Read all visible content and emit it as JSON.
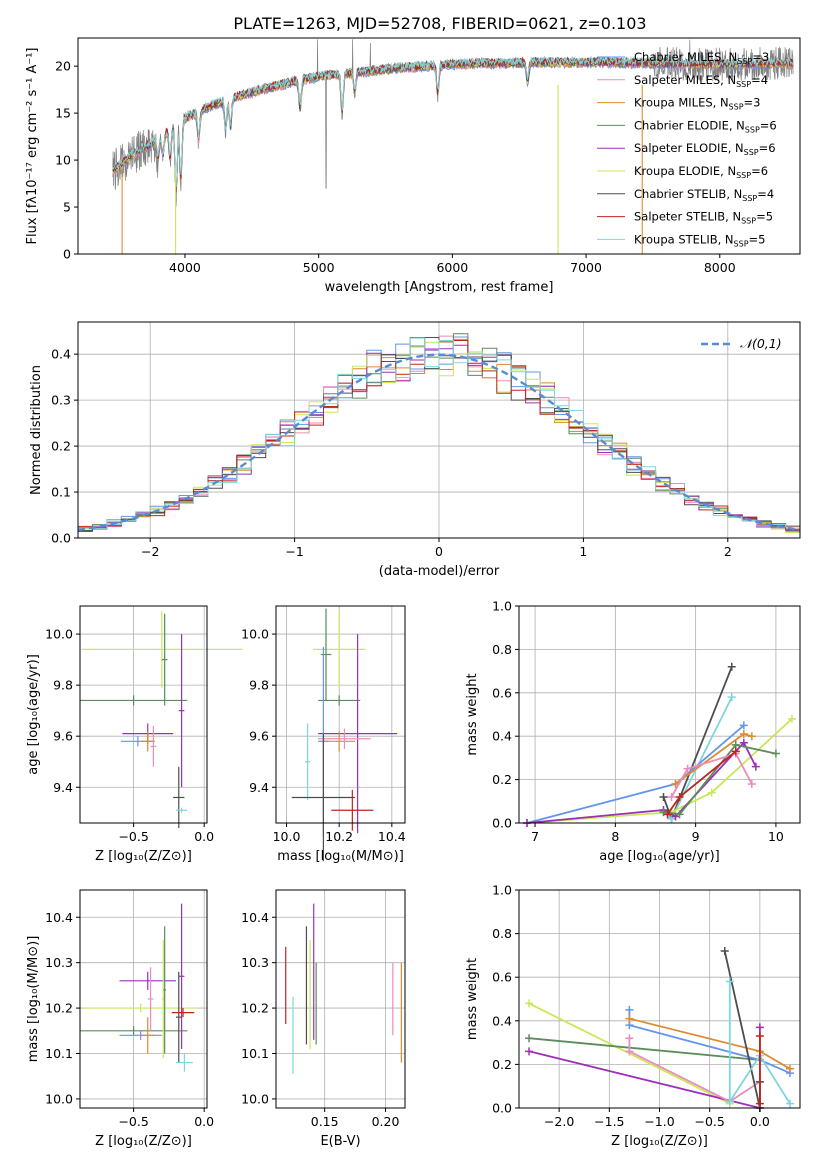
{
  "title": "PLATE=1263, MJD=52708, FIBERID=0621, z=0.103",
  "chart_data": [
    {
      "id": "spectrum",
      "type": "line",
      "xlabel": "wavelength [Angstrom, rest frame]",
      "ylabel": "Flux [fλ10⁻¹⁷ erg cm⁻² s⁻¹ A⁻¹]",
      "xlim": [
        3200,
        8600
      ],
      "ylim": [
        0,
        23
      ],
      "xticks": [
        4000,
        5000,
        6000,
        7000,
        8000
      ],
      "yticks": [
        0,
        5,
        10,
        15,
        20
      ],
      "grid": false,
      "legend_loc": "upper-right",
      "observed": {
        "color": "#7f7f7f",
        "x": [
          3460,
          3600,
          3800,
          4000,
          4200,
          4400,
          4600,
          4800,
          5000,
          5200,
          5400,
          5600,
          5800,
          6000,
          6200,
          6400,
          6600,
          6800,
          7000,
          7200,
          7400,
          7600,
          7800,
          8000,
          8200,
          8400,
          8550
        ],
        "y": [
          8.8,
          10.5,
          12.2,
          14.5,
          15.8,
          16.8,
          17.6,
          18.3,
          18.9,
          19.2,
          19.5,
          19.8,
          20.0,
          20.2,
          20.3,
          20.3,
          20.4,
          20.4,
          20.4,
          20.4,
          20.3,
          20.3,
          20.2,
          20.2,
          20.2,
          20.3,
          20.3
        ]
      },
      "series": [
        {
          "name": "Chabrier MILES, N_SSP=3",
          "color": "#6495ed"
        },
        {
          "name": "Salpeter MILES, N_SSP=4",
          "color": "#ea8cbe"
        },
        {
          "name": "Kroupa MILES, N_SSP=3",
          "color": "#dd8b2c"
        },
        {
          "name": "Chabrier ELODIE, N_SSP=6",
          "color": "#5c8b5c"
        },
        {
          "name": "Salpeter ELODIE, N_SSP=6",
          "color": "#9b30b5"
        },
        {
          "name": "Kroupa ELODIE, N_SSP=6",
          "color": "#c8e85a"
        },
        {
          "name": "Chabrier STELIB, N_SSP=4",
          "color": "#4d4d4d"
        },
        {
          "name": "Salpeter STELIB, N_SSP=5",
          "color": "#c0251d"
        },
        {
          "name": "Kroupa STELIB, N_SSP=5",
          "color": "#7fd6dc"
        }
      ],
      "legend_prefix": [
        "Chabrier MILES, N",
        "Salpeter MILES, N",
        "Kroupa MILES, N",
        "Chabrier ELODIE, N",
        "Salpeter ELODIE, N",
        "Kroupa ELODIE, N",
        "Chabrier STELIB, N",
        "Salpeter STELIB, N",
        "Kroupa STELIB, N"
      ],
      "legend_sub": "SSP",
      "legend_num": [
        "=3",
        "=4",
        "=3",
        "=6",
        "=6",
        "=6",
        "=4",
        "=5",
        "=5"
      ],
      "model_cutoffs": {
        "x": [
          3530,
          3930,
          6790,
          7420
        ],
        "colors": [
          "#dd8b2c",
          "#c8e85a",
          "#c8e85a",
          "#dd8b2c"
        ]
      }
    },
    {
      "id": "residual-hist",
      "type": "bar",
      "xlabel": "(data-model)/error",
      "ylabel": "Normed distribution",
      "xlim": [
        -2.5,
        2.5
      ],
      "ylim": [
        0,
        0.47
      ],
      "xticks": [
        -2,
        -1,
        0,
        1,
        2
      ],
      "yticks": [
        0.0,
        0.1,
        0.2,
        0.3,
        0.4
      ],
      "grid": true,
      "legend_loc": "upper-right",
      "reference_curve": {
        "name": "𝒩(0,1)",
        "mean": 0,
        "sigma": 1,
        "color": "#5a8ad6"
      },
      "bin_width": 0.1
    },
    {
      "id": "age-vs-Z",
      "type": "scatter",
      "xlabel": "Z [log₁₀(Z/Z⊙)]",
      "ylabel": "age  [log₁₀(age/yr)]",
      "xlim": [
        -0.88,
        0.02
      ],
      "ylim": [
        9.26,
        10.11
      ],
      "xticks": [
        -0.5,
        0.0
      ],
      "yticks": [
        9.4,
        9.6,
        9.8,
        10.0
      ],
      "grid": true,
      "points": [
        {
          "x": -0.3,
          "y": 9.94,
          "xerr": 0.57,
          "yerr": 0.15,
          "color": "#c8e85a"
        },
        {
          "x": -0.28,
          "y": 9.9,
          "xerr": 0.02,
          "yerr": 0.18,
          "color": "#5c8b5c"
        },
        {
          "x": -0.5,
          "y": 9.74,
          "xerr": 0.38,
          "yerr": 0.02,
          "color": "#5c8b5c"
        },
        {
          "x": -0.4,
          "y": 9.61,
          "xerr": 0.18,
          "yerr": 0.04,
          "color": "#9b30b5"
        },
        {
          "x": -0.16,
          "y": 9.7,
          "xerr": 0.02,
          "yerr": 0.3,
          "color": "#9b30b5"
        },
        {
          "x": -0.47,
          "y": 9.58,
          "xerr": 0.12,
          "yerr": 0.02,
          "color": "#6495ed"
        },
        {
          "x": -0.4,
          "y": 9.58,
          "xerr": 0.05,
          "yerr": 0.04,
          "color": "#dd8b2c"
        },
        {
          "x": -0.36,
          "y": 9.56,
          "xerr": 0.02,
          "yerr": 0.08,
          "color": "#ea8cbe"
        },
        {
          "x": -0.18,
          "y": 9.36,
          "xerr": 0.04,
          "yerr": 0.12,
          "color": "#4d4d4d"
        },
        {
          "x": -0.16,
          "y": 9.31,
          "xerr": 0.04,
          "yerr": 0.01,
          "color": "#7fd6dc"
        }
      ]
    },
    {
      "id": "age-vs-mass",
      "type": "scatter",
      "xlabel": "mass [log₁₀(M/M⊙)]",
      "ylabel": "",
      "xlim": [
        9.96,
        10.45
      ],
      "ylim": [
        9.26,
        10.11
      ],
      "xticks": [
        10.0,
        10.2,
        10.4
      ],
      "yticks": [
        9.4,
        9.6,
        9.8,
        10.0
      ],
      "grid": true,
      "points": [
        {
          "x": 10.2,
          "y": 9.94,
          "xerr": 0.1,
          "yerr": 0.15,
          "color": "#c8e85a"
        },
        {
          "x": 10.15,
          "y": 9.92,
          "xerr": 0.02,
          "yerr": 0.18,
          "color": "#5c8b5c"
        },
        {
          "x": 10.2,
          "y": 9.74,
          "xerr": 0.08,
          "yerr": 0.02,
          "color": "#5c8b5c"
        },
        {
          "x": 10.27,
          "y": 9.61,
          "xerr": 0.15,
          "yerr": 0.39,
          "color": "#9b30b5"
        },
        {
          "x": 10.14,
          "y": 9.58,
          "xerr": 0.02,
          "yerr": 0.37,
          "color": "#6495ed"
        },
        {
          "x": 10.2,
          "y": 9.58,
          "xerr": 0.06,
          "yerr": 0.04,
          "color": "#dd8b2c"
        },
        {
          "x": 10.22,
          "y": 9.59,
          "xerr": 0.1,
          "yerr": 0.04,
          "color": "#ea8cbe"
        },
        {
          "x": 10.08,
          "y": 9.5,
          "xerr": 0.01,
          "yerr": 0.15,
          "color": "#7fd6dc"
        },
        {
          "x": 10.14,
          "y": 9.36,
          "xerr": 0.12,
          "yerr": 0.25,
          "color": "#4d4d4d"
        },
        {
          "x": 10.25,
          "y": 9.31,
          "xerr": 0.08,
          "yerr": 0.08,
          "color": "#c0251d"
        }
      ]
    },
    {
      "id": "mass-weight-vs-age",
      "type": "line",
      "xlabel": "age  [log₁₀(age/yr)]",
      "ylabel": "mass weight",
      "xlim": [
        6.8,
        10.3
      ],
      "ylim": [
        0,
        1
      ],
      "xticks": [
        7,
        8,
        9,
        10
      ],
      "yticks": [
        0.0,
        0.2,
        0.4,
        0.6,
        0.8,
        1.0
      ],
      "grid": true,
      "series": [
        {
          "color": "#4d4d4d",
          "x": [
            8.6,
            8.7,
            9.45
          ],
          "y": [
            0.12,
            0.02,
            0.72
          ]
        },
        {
          "color": "#7fd6dc",
          "x": [
            8.6,
            8.7,
            9.45
          ],
          "y": [
            0.05,
            0.02,
            0.58
          ]
        },
        {
          "color": "#6495ed",
          "x": [
            6.9,
            8.75,
            9.6
          ],
          "y": [
            0.0,
            0.18,
            0.45
          ]
        },
        {
          "color": "#dd8b2c",
          "x": [
            8.75,
            9.6,
            9.7
          ],
          "y": [
            0.18,
            0.41,
            0.4
          ]
        },
        {
          "color": "#c8e85a",
          "x": [
            6.9,
            8.7,
            9.2,
            10.2
          ],
          "y": [
            0.0,
            0.05,
            0.14,
            0.48
          ]
        },
        {
          "color": "#9b30b5",
          "x": [
            6.9,
            8.6,
            8.75,
            9.6,
            9.75
          ],
          "y": [
            0.0,
            0.06,
            0.03,
            0.37,
            0.26
          ]
        },
        {
          "color": "#5c8b5c",
          "x": [
            8.6,
            8.8,
            9.5,
            10.0
          ],
          "y": [
            0.05,
            0.04,
            0.36,
            0.32
          ]
        },
        {
          "color": "#ea8cbe",
          "x": [
            8.7,
            8.9,
            9.5,
            9.7
          ],
          "y": [
            0.12,
            0.25,
            0.32,
            0.18
          ]
        },
        {
          "color": "#c0251d",
          "x": [
            8.65,
            8.8,
            9.5
          ],
          "y": [
            0.04,
            0.12,
            0.33
          ]
        }
      ]
    },
    {
      "id": "mass-vs-Z",
      "type": "scatter",
      "xlabel": "Z [log₁₀(Z/Z⊙)]",
      "ylabel": "mass [log₁₀(M/M⊙)]",
      "xlim": [
        -0.88,
        0.02
      ],
      "ylim": [
        9.98,
        10.46
      ],
      "xticks": [
        -0.5,
        0.0
      ],
      "yticks": [
        10.0,
        10.1,
        10.2,
        10.3,
        10.4
      ],
      "grid": true,
      "points": [
        {
          "x": -0.5,
          "y": 10.15,
          "xerr": 0.38,
          "yerr": 0.01,
          "color": "#5c8b5c"
        },
        {
          "x": -0.45,
          "y": 10.2,
          "xerr": 0.4,
          "yerr": 0.01,
          "color": "#c8e85a"
        },
        {
          "x": -0.4,
          "y": 10.26,
          "xerr": 0.2,
          "yerr": 0.02,
          "color": "#9b30b5"
        },
        {
          "x": -0.16,
          "y": 10.27,
          "xerr": 0.02,
          "yerr": 0.16,
          "color": "#9b30b5"
        },
        {
          "x": -0.29,
          "y": 10.22,
          "xerr": 0.01,
          "yerr": 0.13,
          "color": "#c8e85a"
        },
        {
          "x": -0.28,
          "y": 10.24,
          "xerr": 0.01,
          "yerr": 0.14,
          "color": "#5c8b5c"
        },
        {
          "x": -0.45,
          "y": 10.14,
          "xerr": 0.15,
          "yerr": 0.01,
          "color": "#6495ed"
        },
        {
          "x": -0.4,
          "y": 10.14,
          "xerr": 0.05,
          "yerr": 0.04,
          "color": "#dd8b2c"
        },
        {
          "x": -0.38,
          "y": 10.22,
          "xerr": 0.02,
          "yerr": 0.07,
          "color": "#ea8cbe"
        },
        {
          "x": -0.18,
          "y": 10.18,
          "xerr": 0.02,
          "yerr": 0.1,
          "color": "#4d4d4d"
        },
        {
          "x": -0.15,
          "y": 10.19,
          "xerr": 0.08,
          "yerr": 0.01,
          "color": "#c0251d"
        },
        {
          "x": -0.14,
          "y": 10.08,
          "xerr": 0.06,
          "yerr": 0.02,
          "color": "#7fd6dc"
        }
      ]
    },
    {
      "id": "mass-vs-EBV",
      "type": "scatter",
      "xlabel": "E(B-V)",
      "ylabel": "",
      "xlim": [
        0.11,
        0.216
      ],
      "ylim": [
        9.98,
        10.46
      ],
      "xticks": [
        0.15,
        0.2
      ],
      "yticks": [
        10.0,
        10.1,
        10.2,
        10.3,
        10.4
      ],
      "grid": true,
      "points": [
        {
          "x": 0.118,
          "y": 10.25,
          "xerr": 0.0,
          "yerr": 0.085,
          "color": "#c0251d"
        },
        {
          "x": 0.124,
          "y": 10.14,
          "xerr": 0.0,
          "yerr": 0.085,
          "color": "#7fd6dc"
        },
        {
          "x": 0.135,
          "y": 10.25,
          "xerr": 0.0,
          "yerr": 0.13,
          "color": "#4d4d4d"
        },
        {
          "x": 0.138,
          "y": 10.23,
          "xerr": 0.0,
          "yerr": 0.12,
          "color": "#c8e85a"
        },
        {
          "x": 0.141,
          "y": 10.28,
          "xerr": 0.0,
          "yerr": 0.15,
          "color": "#9b30b5"
        },
        {
          "x": 0.143,
          "y": 10.21,
          "xerr": 0.0,
          "yerr": 0.09,
          "color": "#5c8b5c"
        },
        {
          "x": 0.206,
          "y": 10.22,
          "xerr": 0.0,
          "yerr": 0.08,
          "color": "#ea8cbe"
        },
        {
          "x": 0.213,
          "y": 10.19,
          "xerr": 0.0,
          "yerr": 0.11,
          "color": "#dd8b2c"
        }
      ]
    },
    {
      "id": "mass-weight-vs-Z",
      "type": "line",
      "xlabel": "Z [log₁₀(Z/Z⊙)]",
      "ylabel": "mass weight",
      "xlim": [
        -2.4,
        0.4
      ],
      "ylim": [
        0,
        1
      ],
      "xticks": [
        -2.0,
        -1.5,
        -1.0,
        -0.5,
        0.0
      ],
      "yticks": [
        0.0,
        0.2,
        0.4,
        0.6,
        0.8,
        1.0
      ],
      "grid": true,
      "series": [
        {
          "color": "#c8e85a",
          "x": [
            -2.3,
            -0.3
          ],
          "y": [
            0.48,
            0.02
          ]
        },
        {
          "color": "#5c8b5c",
          "x": [
            -2.3,
            0.0
          ],
          "y": [
            0.32,
            0.22
          ]
        },
        {
          "color": "#9b30b5",
          "x": [
            -2.3,
            0.0,
            0.0
          ],
          "y": [
            0.26,
            0.0,
            0.37
          ]
        },
        {
          "color": "#6495ed",
          "x": [
            -1.3,
            -1.3,
            0.0,
            0.3
          ],
          "y": [
            0.45,
            0.38,
            0.22,
            0.16
          ]
        },
        {
          "color": "#dd8b2c",
          "x": [
            -1.3,
            0.0,
            0.3
          ],
          "y": [
            0.41,
            0.26,
            0.18
          ]
        },
        {
          "color": "#ea8cbe",
          "x": [
            -1.3,
            -1.3,
            -0.3,
            0.0
          ],
          "y": [
            0.32,
            0.26,
            0.03,
            0.12
          ]
        },
        {
          "color": "#4d4d4d",
          "x": [
            -0.35,
            0.0,
            0.0
          ],
          "y": [
            0.72,
            0.0,
            0.12
          ]
        },
        {
          "color": "#7fd6dc",
          "x": [
            -0.3,
            -0.3,
            0.0,
            0.3
          ],
          "y": [
            0.58,
            0.03,
            0.24,
            0.02
          ]
        },
        {
          "color": "#c0251d",
          "x": [
            0.0,
            0.0
          ],
          "y": [
            0.02,
            0.33
          ]
        }
      ]
    }
  ]
}
